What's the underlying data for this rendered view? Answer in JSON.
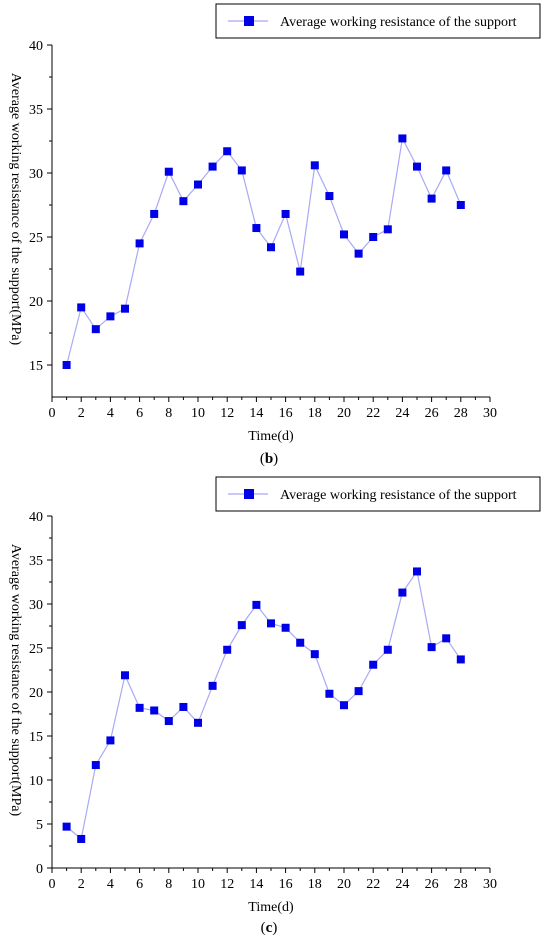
{
  "chart_data": [
    {
      "type": "line",
      "panel_label": "(b)",
      "xlabel": "Time(d)",
      "ylabel": "Average working resistance of the support(MPa)",
      "xlim": [
        0,
        30
      ],
      "ylim": [
        12.5,
        40
      ],
      "xticks": [
        0,
        2,
        4,
        6,
        8,
        10,
        12,
        14,
        16,
        18,
        20,
        22,
        24,
        26,
        28,
        30
      ],
      "yticks": [
        15,
        20,
        25,
        30,
        35,
        40
      ],
      "legend_position": "top-right",
      "grid": false,
      "line_color": "#a9a9f5",
      "marker_color": "#0000e6",
      "series": [
        {
          "name": "Average working resistance of the support",
          "x": [
            1,
            2,
            3,
            4,
            5,
            6,
            7,
            8,
            9,
            10,
            11,
            12,
            13,
            14,
            15,
            16,
            17,
            18,
            19,
            20,
            21,
            22,
            23,
            24,
            25,
            26,
            27,
            28
          ],
          "values": [
            15.0,
            19.5,
            17.8,
            18.8,
            19.4,
            24.5,
            26.8,
            30.1,
            27.8,
            29.1,
            30.5,
            31.7,
            30.2,
            25.7,
            24.2,
            26.8,
            22.3,
            30.6,
            28.2,
            25.2,
            23.7,
            25.0,
            25.6,
            32.7,
            30.5,
            28.0,
            30.2,
            27.5
          ]
        }
      ]
    },
    {
      "type": "line",
      "panel_label": "(c)",
      "xlabel": "Time(d)",
      "ylabel": "Average working resistance of the support(MPa)",
      "xlim": [
        0,
        30
      ],
      "ylim": [
        0,
        40
      ],
      "xticks": [
        0,
        2,
        4,
        6,
        8,
        10,
        12,
        14,
        16,
        18,
        20,
        22,
        24,
        26,
        28,
        30
      ],
      "yticks": [
        0,
        5,
        10,
        15,
        20,
        25,
        30,
        35,
        40
      ],
      "legend_position": "top-right",
      "grid": false,
      "line_color": "#a9a9f5",
      "marker_color": "#0000e6",
      "series": [
        {
          "name": "Average working resistance of the support",
          "x": [
            1,
            2,
            3,
            4,
            5,
            6,
            7,
            8,
            9,
            10,
            11,
            12,
            13,
            14,
            15,
            16,
            17,
            18,
            19,
            20,
            21,
            22,
            23,
            24,
            25,
            26,
            27,
            28
          ],
          "values": [
            4.7,
            3.3,
            11.7,
            14.5,
            21.9,
            18.2,
            17.9,
            16.7,
            18.3,
            16.5,
            20.7,
            24.8,
            27.6,
            29.9,
            27.8,
            27.3,
            25.6,
            24.3,
            19.8,
            18.5,
            20.1,
            23.1,
            24.8,
            31.3,
            33.7,
            25.1,
            26.1,
            23.7
          ]
        }
      ]
    }
  ]
}
